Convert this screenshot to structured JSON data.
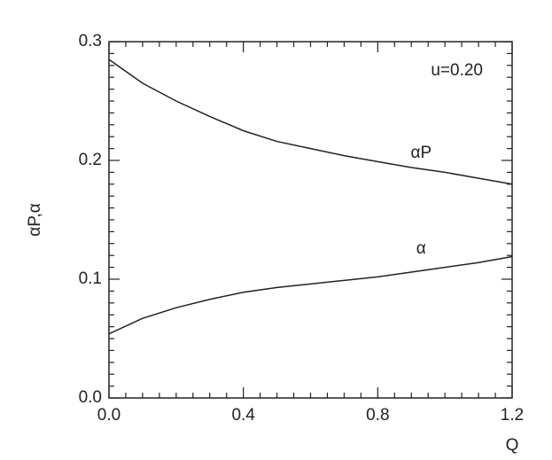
{
  "chart_data": {
    "type": "line",
    "x_label": "Q",
    "y_label": "αP,α",
    "annotation": "u=0.20",
    "x": [
      0,
      0.1,
      0.2,
      0.3,
      0.4,
      0.5,
      0.6,
      0.7,
      0.8,
      0.9,
      1.0,
      1.1,
      1.2
    ],
    "series": [
      {
        "name": "αP",
        "color": "#222222",
        "values": [
          0.285,
          0.265,
          0.25,
          0.237,
          0.225,
          0.216,
          0.21,
          0.204,
          0.199,
          0.194,
          0.19,
          0.185,
          0.18
        ]
      },
      {
        "name": "α",
        "color": "#222222",
        "values": [
          0.054,
          0.067,
          0.076,
          0.083,
          0.089,
          0.093,
          0.096,
          0.099,
          0.102,
          0.106,
          0.11,
          0.114,
          0.119
        ]
      }
    ],
    "xlim": [
      0,
      1.2
    ],
    "ylim": [
      0,
      0.3
    ],
    "xticks": [
      {
        "value": 0,
        "label": "0.0"
      },
      0.4,
      0.8,
      1.2
    ],
    "yticks": [
      {
        "value": 0,
        "label": "0.0"
      },
      0.1,
      0.2,
      0.3
    ],
    "xminorticks": [
      0.05,
      0.1,
      0.15,
      0.2,
      0.25,
      0.3,
      0.35,
      0.45,
      0.5,
      0.55,
      0.6,
      0.65,
      0.7,
      0.75,
      0.85,
      0.9,
      0.95,
      1.0,
      1.05,
      1.1,
      1.15
    ],
    "yminorticks": [
      0.01,
      0.02,
      0.03,
      0.04,
      0.05,
      0.06,
      0.07,
      0.08,
      0.09,
      0.11,
      0.12,
      0.13,
      0.14,
      0.15,
      0.16,
      0.17,
      0.18,
      0.19,
      0.21,
      0.22,
      0.23,
      0.24,
      0.25,
      0.26,
      0.27,
      0.28,
      0.29
    ]
  }
}
